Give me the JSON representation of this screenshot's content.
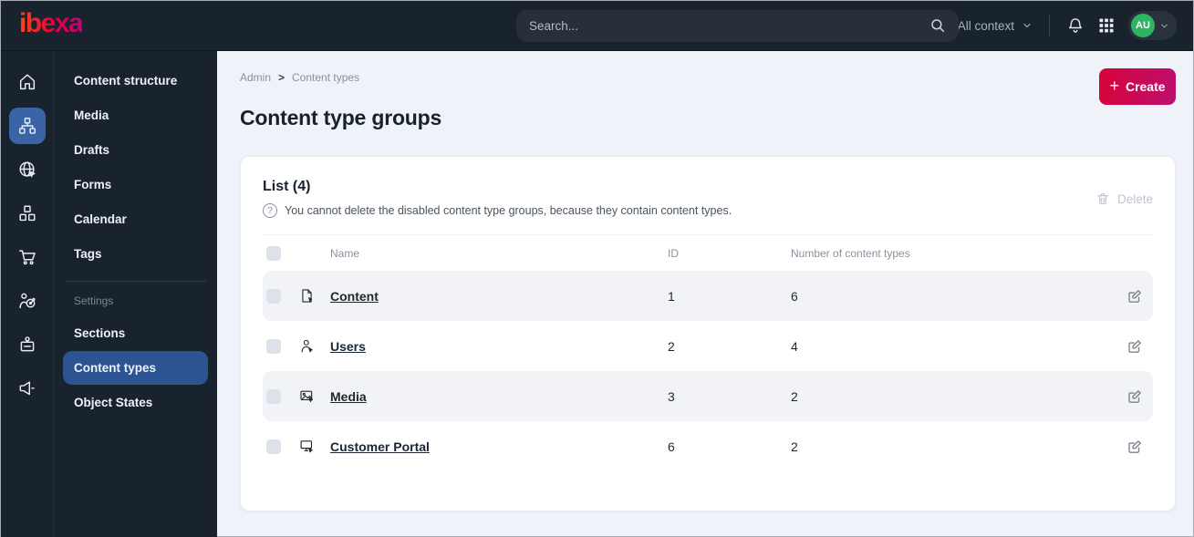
{
  "topbar": {
    "logo_text": "ibexa",
    "search_placeholder": "Search...",
    "site_context_label": "Site: All context",
    "avatar_initials": "AU"
  },
  "icon_rail": {
    "items": [
      {
        "icon": "home-icon",
        "active": false
      },
      {
        "icon": "content-structure-icon",
        "active": true
      },
      {
        "icon": "site-globe-icon",
        "active": false
      },
      {
        "icon": "blocks-icon",
        "active": false
      },
      {
        "icon": "cart-icon",
        "active": false
      },
      {
        "icon": "personalization-target-icon",
        "active": false
      },
      {
        "icon": "admin-badge-icon",
        "active": false
      },
      {
        "icon": "megaphone-icon",
        "active": false
      }
    ]
  },
  "sidebar": {
    "items": [
      "Content structure",
      "Media",
      "Drafts",
      "Forms",
      "Calendar",
      "Tags"
    ],
    "section_label": "Settings",
    "settings_items": [
      "Sections",
      "Content types",
      "Object States"
    ],
    "active_item": "Content types"
  },
  "breadcrumb": {
    "items": [
      "Admin",
      "Content types"
    ],
    "separator": ">"
  },
  "page": {
    "title": "Content type groups",
    "create_label": "Create",
    "create_plus": "+"
  },
  "card": {
    "list_title": "List (4)",
    "info_icon": "?",
    "info_text": "You cannot delete the disabled content type groups, because they contain content types.",
    "delete_label": "Delete"
  },
  "table": {
    "headers": [
      "Name",
      "ID",
      "Number of content types"
    ],
    "rows": [
      {
        "icon": "file-icon",
        "name": "Content",
        "id": "1",
        "count": "6"
      },
      {
        "icon": "user-icon",
        "name": "Users",
        "id": "2",
        "count": "4"
      },
      {
        "icon": "image-icon",
        "name": "Media",
        "id": "3",
        "count": "2"
      },
      {
        "icon": "monitor-icon",
        "name": "Customer Portal",
        "id": "6",
        "count": "2"
      }
    ]
  },
  "colors": {
    "topbar_bg": "#19232e",
    "active_blue": "#2c5492",
    "rail_active_blue": "#3a64a5",
    "main_bg": "#eff3f9",
    "create_gradient_start": "#d80339",
    "create_gradient_end": "#bb0f70",
    "avatar_green": "#2eb564",
    "striped_row": "#f2f3f6",
    "text_dark": "#17222e",
    "text_gray": "#8a919c"
  }
}
